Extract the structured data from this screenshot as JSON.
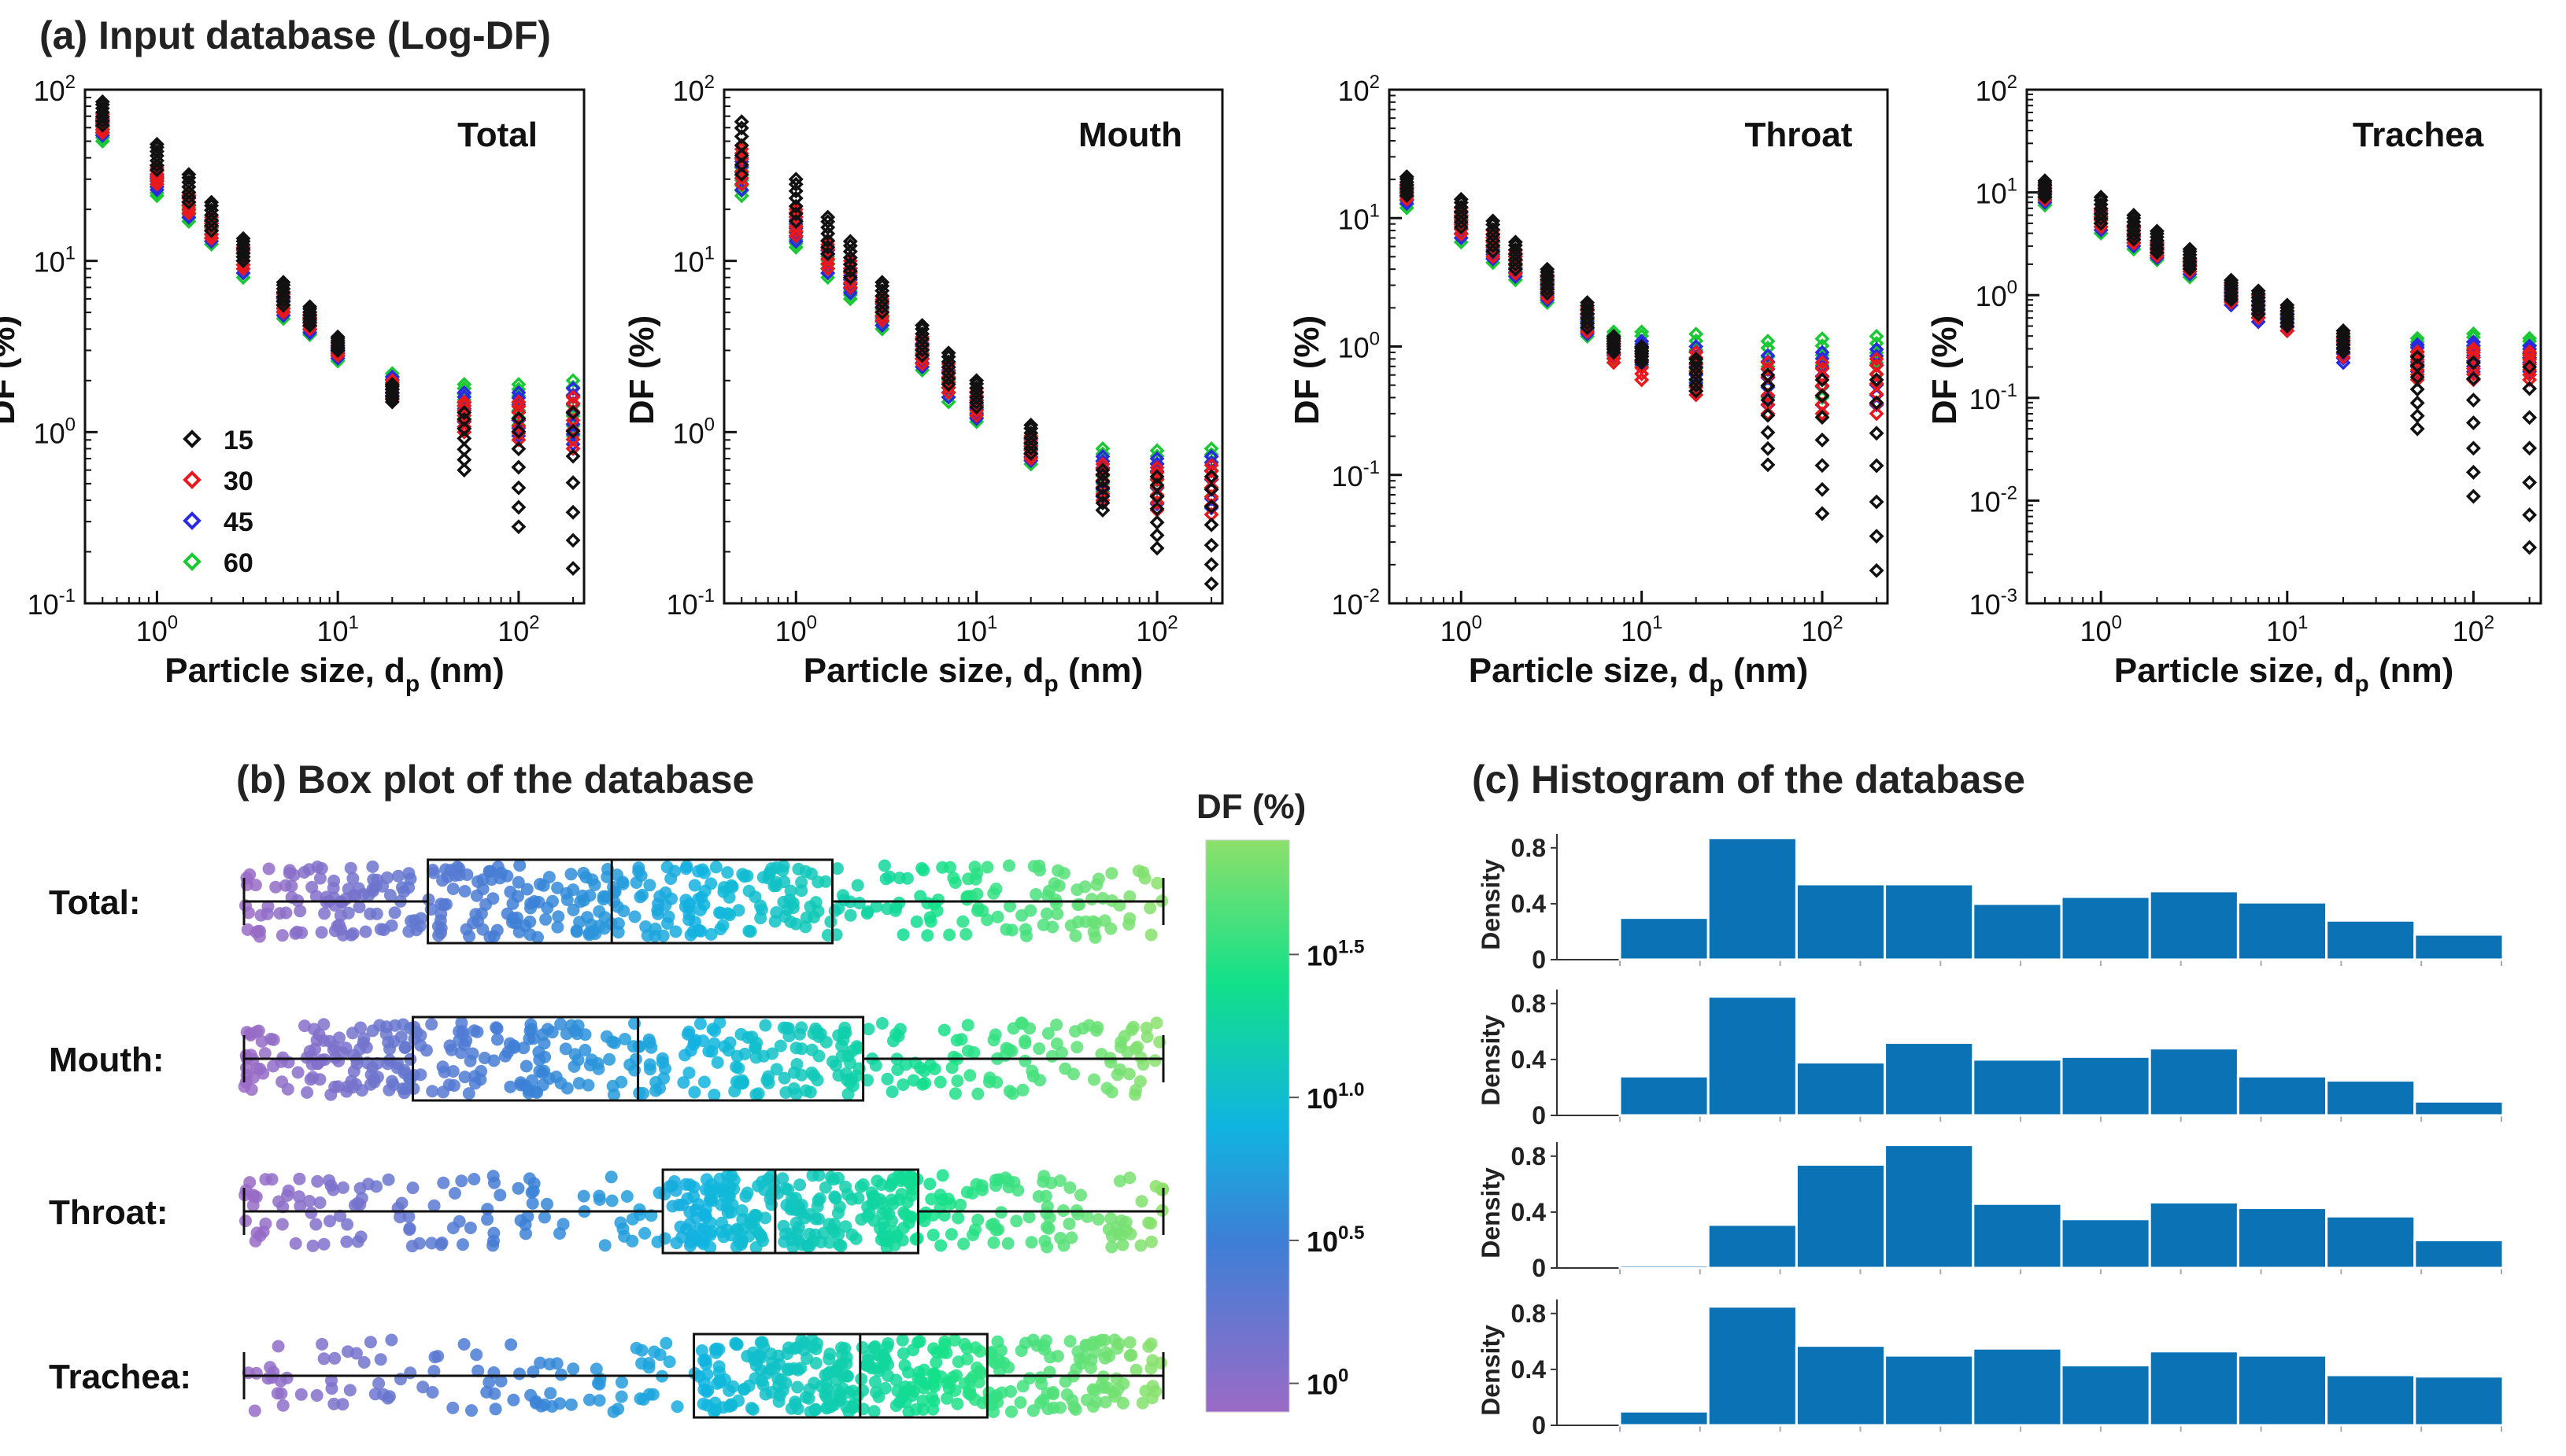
{
  "panel_titles": {
    "a": "(a) Input database (Log-DF)",
    "b": "(b) Box plot of the database",
    "c": "(c) Histogram of the database"
  },
  "colors": {
    "15": "#111111",
    "30": "#e8191c",
    "45": "#2a2ae0",
    "60": "#19c832",
    "hist_bar": "#0b72b5",
    "cmap": [
      "#9b6bc6",
      "#3d7fd6",
      "#10b4e0",
      "#12e08a",
      "#8de06b"
    ]
  },
  "axis_text": {
    "xlabel_main": "Particle size, d",
    "xlabel_sub": "p",
    "xlabel_unit": " (nm)",
    "ylabel": "DF (%)",
    "base": "10",
    "x_tick_exps": [
      "0",
      "1",
      "2"
    ],
    "legend_entries": [
      "15",
      "30",
      "45",
      "60"
    ]
  },
  "colorbar": {
    "title": "DF (%)",
    "base": "10",
    "tick_exps": [
      "1.5",
      "1.0",
      "0.5",
      "0"
    ]
  },
  "hist_axis": {
    "ylabel": "Density",
    "ticks": [
      "0.8",
      "0.4",
      "0"
    ]
  },
  "chart_data": [
    {
      "type": "scatter",
      "title": "Total",
      "xlabel": "Particle size, dp (nm)",
      "ylabel": "DF (%)",
      "xscale": "log",
      "yscale": "log",
      "xlim": [
        0.4,
        230
      ],
      "ylim": [
        0.1,
        100
      ],
      "y_tick_exps": [
        "2",
        "1",
        "0",
        "-1"
      ],
      "legend": [
        "15",
        "30",
        "45",
        "60"
      ],
      "legend_position": "lower-left",
      "x": [
        0.5,
        1,
        1.5,
        2,
        3,
        5,
        7,
        10,
        20,
        50,
        100,
        200
      ],
      "series": [
        {
          "name": "60",
          "lo": [
            50,
            24,
            17,
            12.5,
            8,
            4.6,
            3.7,
            2.6,
            1.6,
            1.2,
            1.1,
            0.95
          ],
          "hi": [
            65,
            30,
            22,
            16,
            11,
            6,
            4.6,
            3.1,
            2.2,
            1.9,
            1.9,
            2.0
          ]
        },
        {
          "name": "45",
          "lo": [
            54,
            26,
            18,
            13,
            8.5,
            4.8,
            3.8,
            2.7,
            1.6,
            1.05,
            0.95,
            0.85
          ],
          "hi": [
            68,
            32,
            24,
            17,
            11.5,
            6.2,
            4.8,
            3.2,
            2.1,
            1.7,
            1.7,
            1.8
          ]
        },
        {
          "name": "30",
          "lo": [
            56,
            28,
            19,
            13.5,
            9,
            5,
            4,
            2.8,
            1.55,
            1.0,
            0.9,
            0.8
          ],
          "hi": [
            72,
            36,
            25,
            18,
            12,
            6.6,
            5.0,
            3.4,
            2.0,
            1.5,
            1.5,
            1.6
          ]
        },
        {
          "name": "15",
          "lo": [
            62,
            34,
            22,
            15,
            10,
            5.5,
            4.2,
            3.0,
            1.5,
            0.6,
            0.28,
            0.16
          ],
          "hi": [
            85,
            48,
            32,
            22,
            13.5,
            7.5,
            5.4,
            3.6,
            1.9,
            1.3,
            1.2,
            1.3
          ]
        }
      ]
    },
    {
      "type": "scatter",
      "title": "Mouth",
      "xlabel": "Particle size, dp (nm)",
      "ylabel": "DF (%)",
      "xscale": "log",
      "yscale": "log",
      "xlim": [
        0.4,
        230
      ],
      "ylim": [
        0.1,
        100
      ],
      "y_tick_exps": [
        "2",
        "1",
        "0",
        "-1"
      ],
      "x": [
        0.5,
        1,
        1.5,
        2,
        3,
        5,
        7,
        10,
        20,
        50,
        100,
        200
      ],
      "series": [
        {
          "name": "60",
          "lo": [
            24,
            12,
            8,
            6,
            4,
            2.3,
            1.5,
            1.15,
            0.65,
            0.45,
            0.42,
            0.42
          ],
          "hi": [
            35,
            16,
            11,
            8,
            5.2,
            3,
            2.1,
            1.6,
            0.85,
            0.8,
            0.78,
            0.8
          ]
        },
        {
          "name": "45",
          "lo": [
            26,
            13,
            8.5,
            6.5,
            4.2,
            2.4,
            1.6,
            1.2,
            0.68,
            0.42,
            0.38,
            0.36
          ],
          "hi": [
            40,
            18,
            12,
            9,
            5.8,
            3.3,
            2.3,
            1.7,
            0.9,
            0.72,
            0.7,
            0.72
          ]
        },
        {
          "name": "30",
          "lo": [
            28,
            14,
            9,
            7,
            4.5,
            2.5,
            1.7,
            1.25,
            0.7,
            0.4,
            0.35,
            0.33
          ],
          "hi": [
            45,
            20,
            13,
            10,
            6.2,
            3.6,
            2.5,
            1.8,
            0.95,
            0.65,
            0.62,
            0.64
          ]
        },
        {
          "name": "15",
          "lo": [
            32,
            17,
            11,
            8,
            5,
            2.8,
            1.9,
            1.4,
            0.75,
            0.35,
            0.21,
            0.13
          ],
          "hi": [
            65,
            30,
            18,
            13,
            7.5,
            4.2,
            2.9,
            2.0,
            1.1,
            0.6,
            0.55,
            0.55
          ]
        }
      ]
    },
    {
      "type": "scatter",
      "title": "Throat",
      "xlabel": "Particle size, dp (nm)",
      "ylabel": "DF (%)",
      "xscale": "log",
      "yscale": "log",
      "xlim": [
        0.4,
        230
      ],
      "ylim": [
        0.01,
        100
      ],
      "y_tick_exps": [
        "2",
        "1",
        "0",
        "-1",
        "-2"
      ],
      "x": [
        0.5,
        1,
        1.5,
        2,
        3,
        5,
        7,
        10,
        20,
        50,
        100,
        200
      ],
      "series": [
        {
          "name": "60",
          "lo": [
            12,
            6.5,
            4.5,
            3.3,
            2.2,
            1.2,
            0.8,
            0.7,
            0.45,
            0.4,
            0.4,
            0.42
          ],
          "hi": [
            17,
            10,
            7,
            5,
            3.3,
            1.8,
            1.3,
            1.3,
            1.25,
            1.1,
            1.15,
            1.2
          ]
        },
        {
          "name": "45",
          "lo": [
            13,
            7,
            4.8,
            3.5,
            2.3,
            1.25,
            0.85,
            0.72,
            0.45,
            0.35,
            0.35,
            0.35
          ],
          "hi": [
            18,
            11,
            7.5,
            5.3,
            3.5,
            1.9,
            1.2,
            1.1,
            1.0,
            0.85,
            0.9,
            0.95
          ]
        },
        {
          "name": "30",
          "lo": [
            14,
            7.5,
            5,
            3.7,
            2.4,
            1.3,
            0.75,
            0.55,
            0.42,
            0.3,
            0.3,
            0.3
          ],
          "hi": [
            19,
            12,
            8,
            5.6,
            3.6,
            2.0,
            1.15,
            1.0,
            0.9,
            0.75,
            0.75,
            0.8
          ]
        },
        {
          "name": "15",
          "lo": [
            15,
            8.5,
            5.5,
            4,
            2.6,
            1.4,
            0.9,
            0.75,
            0.45,
            0.12,
            0.05,
            0.018
          ],
          "hi": [
            21,
            14,
            9.5,
            6.5,
            4,
            2.2,
            1.2,
            1.0,
            0.8,
            0.6,
            0.55,
            0.55
          ]
        }
      ]
    },
    {
      "type": "scatter",
      "title": "Trachea",
      "xlabel": "Particle size, dp (nm)",
      "ylabel": "DF (%)",
      "xscale": "log",
      "yscale": "log",
      "xlim": [
        0.4,
        230
      ],
      "ylim": [
        0.001,
        100
      ],
      "y_tick_exps": [
        "2",
        "1",
        "0",
        "-1",
        "-2",
        "-3"
      ],
      "x": [
        0.5,
        1,
        1.5,
        2,
        3,
        5,
        7,
        10,
        20,
        50,
        100,
        200
      ],
      "series": [
        {
          "name": "60",
          "lo": [
            7.5,
            4,
            2.8,
            2.2,
            1.5,
            0.85,
            0.6,
            0.45,
            0.25,
            0.2,
            0.22,
            0.22
          ],
          "hi": [
            10,
            6,
            4.2,
            3,
            2.1,
            1.3,
            1.0,
            0.75,
            0.4,
            0.38,
            0.42,
            0.38
          ]
        },
        {
          "name": "45",
          "lo": [
            8,
            4.3,
            3,
            2.3,
            1.6,
            0.8,
            0.55,
            0.45,
            0.22,
            0.18,
            0.18,
            0.18
          ],
          "hi": [
            11,
            6.5,
            4.5,
            3.2,
            2.2,
            1.25,
            0.95,
            0.7,
            0.38,
            0.33,
            0.35,
            0.32
          ]
        },
        {
          "name": "30",
          "lo": [
            8.5,
            4.6,
            3.2,
            2.4,
            1.7,
            0.85,
            0.6,
            0.45,
            0.25,
            0.15,
            0.15,
            0.15
          ],
          "hi": [
            12,
            7,
            4.8,
            3.4,
            2.3,
            1.3,
            1.0,
            0.75,
            0.45,
            0.28,
            0.3,
            0.28
          ]
        },
        {
          "name": "15",
          "lo": [
            9,
            5,
            3.5,
            2.6,
            1.8,
            0.9,
            0.65,
            0.5,
            0.28,
            0.05,
            0.011,
            0.0035
          ],
          "hi": [
            13,
            9,
            6,
            4.2,
            2.8,
            1.4,
            1.1,
            0.8,
            0.45,
            0.25,
            0.22,
            0.2
          ]
        }
      ]
    },
    {
      "type": "box",
      "title": "Box plot of the database",
      "value_scale": "log10 DF (%)",
      "colorbar_range": [
        -0.1,
        1.9
      ],
      "rows": [
        {
          "label": "Total:",
          "min": -0.05,
          "q1": 0.45,
          "median": 0.95,
          "q3": 1.55,
          "max": 2.45
        },
        {
          "label": "Mouth:",
          "min": -0.45,
          "q1": 0.0,
          "median": 0.6,
          "q3": 1.2,
          "max": 2.0
        },
        {
          "label": "Throat:",
          "min": -1.7,
          "q1": 0.35,
          "median": 0.9,
          "q3": 1.6,
          "max": 2.8
        },
        {
          "label": "Trachea:",
          "min": -2.45,
          "q1": -0.15,
          "median": 0.7,
          "q3": 1.35,
          "max": 2.25
        }
      ]
    },
    {
      "type": "bar",
      "title": "Histogram of the database",
      "ylabel": "Density",
      "ylim": [
        0,
        0.9
      ],
      "series": [
        {
          "name": "Total",
          "values": [
            0.3,
            0.87,
            0.54,
            0.54,
            0.4,
            0.45,
            0.49,
            0.41,
            0.28,
            0.18
          ]
        },
        {
          "name": "Mouth",
          "values": [
            0.28,
            0.85,
            0.38,
            0.52,
            0.4,
            0.42,
            0.48,
            0.28,
            0.25,
            0.1
          ]
        },
        {
          "name": "Throat",
          "values": [
            0.02,
            0.31,
            0.74,
            0.88,
            0.46,
            0.35,
            0.47,
            0.43,
            0.37,
            0.2
          ]
        },
        {
          "name": "Trachea",
          "values": [
            0.1,
            0.85,
            0.57,
            0.5,
            0.55,
            0.43,
            0.53,
            0.5,
            0.36,
            0.35
          ]
        }
      ]
    }
  ]
}
